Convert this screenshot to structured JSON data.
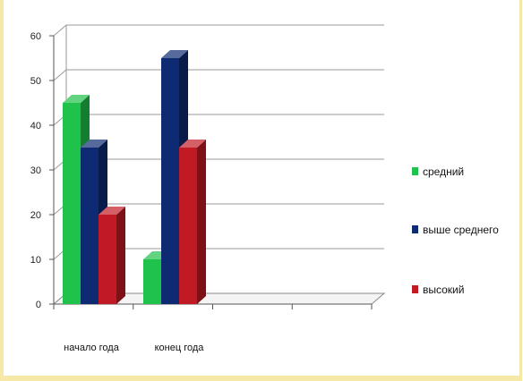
{
  "chart_data": {
    "type": "bar",
    "categories": [
      "начало года",
      "конец года"
    ],
    "series": [
      {
        "name": "средний",
        "values": [
          45,
          10
        ],
        "color": "#1fc24a"
      },
      {
        "name": "выше среднего",
        "values": [
          35,
          55
        ],
        "color": "#0d2a72"
      },
      {
        "name": "высокий",
        "values": [
          20,
          35
        ],
        "color": "#c21a24"
      }
    ],
    "ylim": [
      0,
      60
    ],
    "yticks": [
      0,
      10,
      20,
      30,
      40,
      50,
      60
    ],
    "grid": true,
    "legend_position": "right",
    "style": "3d-clustered-column",
    "title": "",
    "xlabel": "",
    "ylabel": ""
  }
}
